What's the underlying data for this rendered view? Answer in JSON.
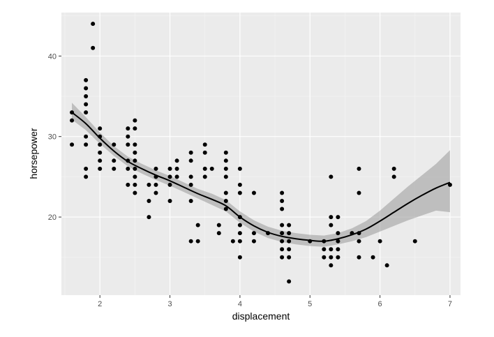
{
  "chart_data": {
    "type": "scatter",
    "xlabel": "displacement",
    "ylabel": "horsepower",
    "xlim": [
      1.45,
      7.15
    ],
    "ylim": [
      10.3,
      45.4
    ],
    "x_ticks": [
      2,
      3,
      4,
      5,
      6,
      7
    ],
    "y_ticks": [
      20,
      30,
      40
    ],
    "grid": true,
    "colors": {
      "panel": "#ebebeb",
      "grid_major": "#ffffff",
      "grid_minor": "#f5f5f5",
      "point": "#000000",
      "smooth": "#000000",
      "ribbon": "#999999"
    },
    "series": [
      {
        "type": "points",
        "points": [
          [
            1.6,
            33
          ],
          [
            1.6,
            32
          ],
          [
            1.6,
            29
          ],
          [
            1.8,
            37
          ],
          [
            1.8,
            36
          ],
          [
            1.8,
            35
          ],
          [
            1.8,
            34
          ],
          [
            1.8,
            33
          ],
          [
            1.8,
            30
          ],
          [
            1.8,
            29
          ],
          [
            1.8,
            26
          ],
          [
            1.8,
            25
          ],
          [
            1.9,
            44
          ],
          [
            1.9,
            41
          ],
          [
            2.0,
            31
          ],
          [
            2.0,
            30
          ],
          [
            2.0,
            29
          ],
          [
            2.0,
            28
          ],
          [
            2.0,
            27
          ],
          [
            2.0,
            26
          ],
          [
            2.2,
            29
          ],
          [
            2.2,
            27
          ],
          [
            2.2,
            26
          ],
          [
            2.4,
            31
          ],
          [
            2.4,
            30
          ],
          [
            2.4,
            29
          ],
          [
            2.4,
            27
          ],
          [
            2.4,
            26
          ],
          [
            2.4,
            24
          ],
          [
            2.5,
            32
          ],
          [
            2.5,
            31
          ],
          [
            2.5,
            29
          ],
          [
            2.5,
            28
          ],
          [
            2.5,
            27
          ],
          [
            2.5,
            26
          ],
          [
            2.5,
            25
          ],
          [
            2.5,
            24
          ],
          [
            2.5,
            23
          ],
          [
            2.7,
            24
          ],
          [
            2.7,
            22
          ],
          [
            2.7,
            20
          ],
          [
            2.8,
            26
          ],
          [
            2.8,
            25
          ],
          [
            2.8,
            24
          ],
          [
            2.8,
            23
          ],
          [
            3.0,
            26
          ],
          [
            3.0,
            25
          ],
          [
            3.0,
            24
          ],
          [
            3.0,
            22
          ],
          [
            3.1,
            27
          ],
          [
            3.1,
            26
          ],
          [
            3.1,
            25
          ],
          [
            3.3,
            28
          ],
          [
            3.3,
            27
          ],
          [
            3.3,
            25
          ],
          [
            3.3,
            24
          ],
          [
            3.3,
            22
          ],
          [
            3.3,
            17
          ],
          [
            3.4,
            19
          ],
          [
            3.4,
            17
          ],
          [
            3.5,
            29
          ],
          [
            3.5,
            28
          ],
          [
            3.5,
            26
          ],
          [
            3.5,
            25
          ],
          [
            3.6,
            26
          ],
          [
            3.7,
            19
          ],
          [
            3.7,
            18
          ],
          [
            3.8,
            28
          ],
          [
            3.8,
            27
          ],
          [
            3.8,
            26
          ],
          [
            3.8,
            25
          ],
          [
            3.8,
            23
          ],
          [
            3.8,
            22
          ],
          [
            3.8,
            21
          ],
          [
            3.9,
            17
          ],
          [
            4.0,
            26
          ],
          [
            4.0,
            24
          ],
          [
            4.0,
            23
          ],
          [
            4.0,
            20
          ],
          [
            4.0,
            19
          ],
          [
            4.0,
            18
          ],
          [
            4.0,
            17
          ],
          [
            4.0,
            15
          ],
          [
            4.2,
            23
          ],
          [
            4.2,
            18
          ],
          [
            4.2,
            17
          ],
          [
            4.4,
            18
          ],
          [
            4.6,
            23
          ],
          [
            4.6,
            22
          ],
          [
            4.6,
            21
          ],
          [
            4.6,
            19
          ],
          [
            4.6,
            18
          ],
          [
            4.6,
            17
          ],
          [
            4.6,
            16
          ],
          [
            4.6,
            15
          ],
          [
            4.7,
            19
          ],
          [
            4.7,
            18
          ],
          [
            4.7,
            17
          ],
          [
            4.7,
            16
          ],
          [
            4.7,
            15
          ],
          [
            4.7,
            12
          ],
          [
            5.0,
            17
          ],
          [
            5.2,
            17
          ],
          [
            5.2,
            16
          ],
          [
            5.2,
            15
          ],
          [
            5.3,
            25
          ],
          [
            5.3,
            20
          ],
          [
            5.3,
            19
          ],
          [
            5.3,
            16
          ],
          [
            5.3,
            15
          ],
          [
            5.3,
            14
          ],
          [
            5.4,
            20
          ],
          [
            5.4,
            18
          ],
          [
            5.4,
            17
          ],
          [
            5.4,
            16
          ],
          [
            5.4,
            15
          ],
          [
            5.6,
            18
          ],
          [
            5.7,
            26
          ],
          [
            5.7,
            23
          ],
          [
            5.7,
            18
          ],
          [
            5.7,
            17
          ],
          [
            5.7,
            15
          ],
          [
            5.9,
            15
          ],
          [
            6.0,
            17
          ],
          [
            6.1,
            14
          ],
          [
            6.2,
            26
          ],
          [
            6.2,
            25
          ],
          [
            6.5,
            17
          ],
          [
            7.0,
            24
          ]
        ]
      },
      {
        "type": "smooth",
        "method": "loess",
        "line": [
          [
            1.6,
            33
          ],
          [
            1.8,
            31.6
          ],
          [
            2.0,
            29.8
          ],
          [
            2.2,
            28.2
          ],
          [
            2.4,
            26.9
          ],
          [
            2.6,
            26
          ],
          [
            2.8,
            25.2
          ],
          [
            3.0,
            24.5
          ],
          [
            3.2,
            23.7
          ],
          [
            3.4,
            22.9
          ],
          [
            3.6,
            22.2
          ],
          [
            3.8,
            21.4
          ],
          [
            4.0,
            20
          ],
          [
            4.2,
            18.9
          ],
          [
            4.4,
            18.1
          ],
          [
            4.6,
            17.6
          ],
          [
            4.8,
            17.3
          ],
          [
            5.0,
            17.1
          ],
          [
            5.2,
            17
          ],
          [
            5.4,
            17.3
          ],
          [
            5.6,
            17.8
          ],
          [
            5.8,
            18.5
          ],
          [
            6.0,
            19.5
          ],
          [
            6.2,
            20.6
          ],
          [
            6.4,
            21.7
          ],
          [
            6.6,
            22.7
          ],
          [
            6.8,
            23.6
          ],
          [
            7.0,
            24.3
          ]
        ],
        "band": [
          [
            1.6,
            32.1,
            34.2
          ],
          [
            1.8,
            30.8,
            32.4
          ],
          [
            2.0,
            29.1,
            30.5
          ],
          [
            2.2,
            27.6,
            28.8
          ],
          [
            2.4,
            26.3,
            27.5
          ],
          [
            2.6,
            25.4,
            26.6
          ],
          [
            2.8,
            24.6,
            25.8
          ],
          [
            3.0,
            23.9,
            25.1
          ],
          [
            3.2,
            23.1,
            24.3
          ],
          [
            3.4,
            22.3,
            23.5
          ],
          [
            3.6,
            21.5,
            22.9
          ],
          [
            3.8,
            20.7,
            22.1
          ],
          [
            4.0,
            19.3,
            20.7
          ],
          [
            4.2,
            18.2,
            19.6
          ],
          [
            4.4,
            17.4,
            18.8
          ],
          [
            4.6,
            16.9,
            18.3
          ],
          [
            4.8,
            16.6,
            18
          ],
          [
            5.0,
            16.4,
            17.8
          ],
          [
            5.2,
            16.3,
            17.7
          ],
          [
            5.4,
            16.6,
            18
          ],
          [
            5.6,
            17,
            18.6
          ],
          [
            5.8,
            17.5,
            19.5
          ],
          [
            6.0,
            18.2,
            20.8
          ],
          [
            6.2,
            18.9,
            22.3
          ],
          [
            6.4,
            19.6,
            23.8
          ],
          [
            6.6,
            20.2,
            25.2
          ],
          [
            6.8,
            20.8,
            26.6
          ],
          [
            7.0,
            20.6,
            28.3
          ]
        ]
      }
    ]
  }
}
